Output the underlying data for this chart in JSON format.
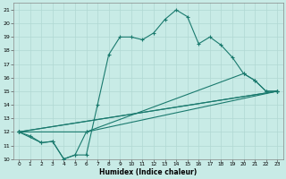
{
  "xlabel": "Humidex (Indice chaleur)",
  "bg_color": "#c8ebe6",
  "line_color": "#1a7a6e",
  "grid_color": "#b0d8d2",
  "xlim": [
    -0.5,
    23.5
  ],
  "ylim": [
    10,
    21.5
  ],
  "xticks": [
    0,
    1,
    2,
    3,
    4,
    5,
    6,
    7,
    8,
    9,
    10,
    11,
    12,
    13,
    14,
    15,
    16,
    17,
    18,
    19,
    20,
    21,
    22,
    23
  ],
  "yticks": [
    10,
    11,
    12,
    13,
    14,
    15,
    16,
    17,
    18,
    19,
    20,
    21
  ],
  "main_curve": {
    "x": [
      0,
      1,
      2,
      3,
      4,
      5,
      6,
      7,
      8,
      9,
      10,
      11,
      12,
      13,
      14,
      15,
      16,
      17,
      18,
      19,
      20,
      21,
      22,
      23
    ],
    "y": [
      12,
      11.7,
      11.2,
      11.3,
      10.0,
      10.3,
      10.3,
      14.0,
      17.7,
      19.0,
      19.0,
      18.8,
      19.3,
      20.3,
      21.0,
      20.5,
      18.5,
      19.0,
      18.4,
      17.5,
      16.3,
      15.8,
      15.0,
      15.0
    ]
  },
  "straight_lines": [
    {
      "x": [
        0,
        6,
        23
      ],
      "y": [
        12,
        12.0,
        15.0
      ]
    },
    {
      "x": [
        0,
        23
      ],
      "y": [
        12,
        15.0
      ]
    },
    {
      "x": [
        0,
        23
      ],
      "y": [
        12,
        15.0
      ]
    }
  ],
  "angled_line": {
    "x": [
      0,
      2,
      3,
      4,
      5,
      6,
      20,
      21,
      22,
      23
    ],
    "y": [
      12,
      11.2,
      11.3,
      10.0,
      10.3,
      12.0,
      16.3,
      15.8,
      15.0,
      15.0
    ]
  }
}
